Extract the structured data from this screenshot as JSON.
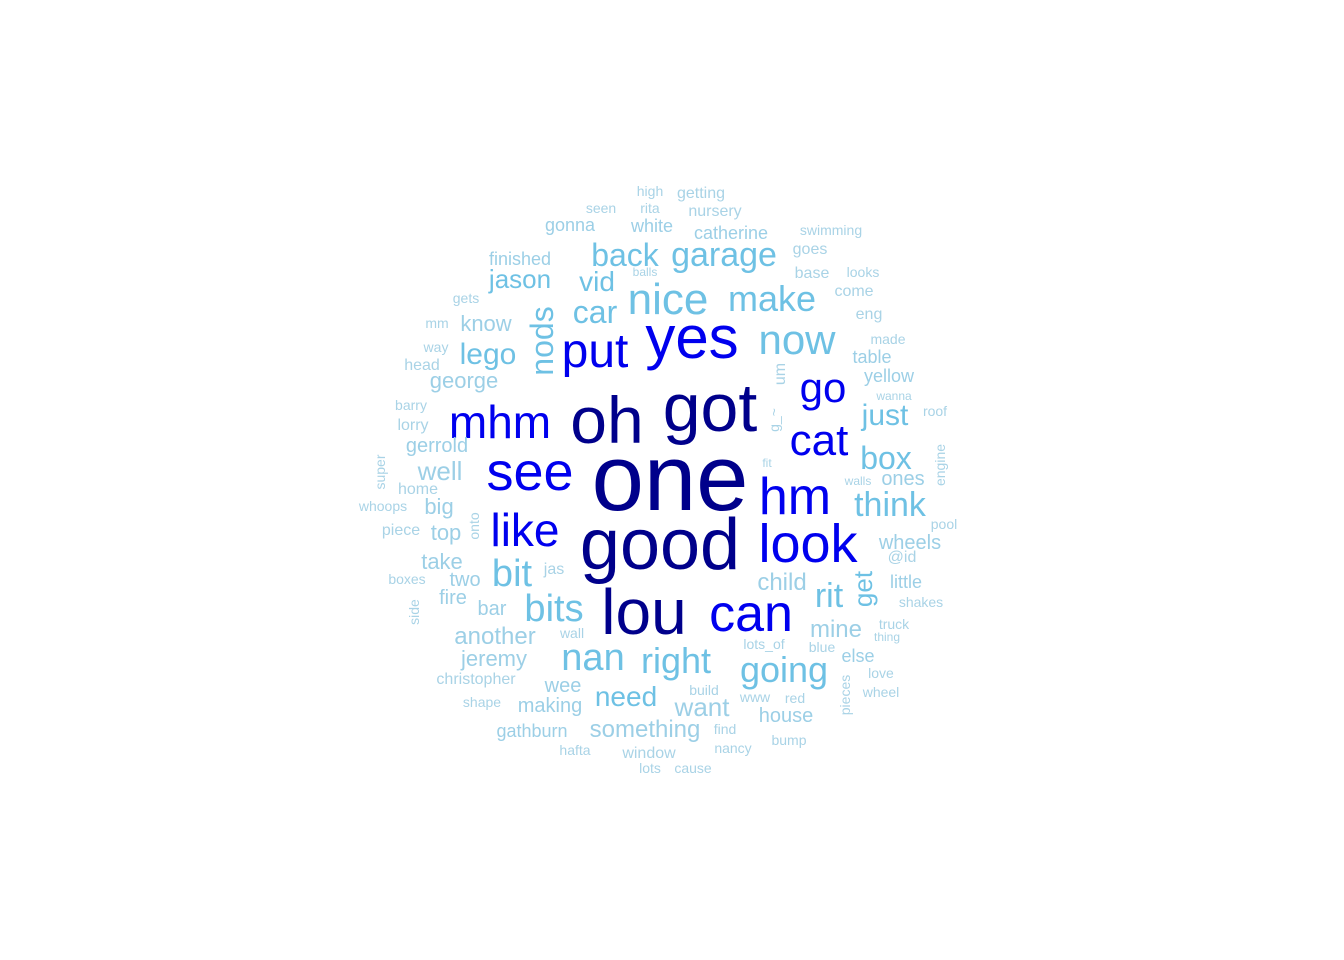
{
  "colors": {
    "tier1": "#00008B",
    "tier2": "#0000EE",
    "tier3": "#6EC1E4",
    "tier4": "#9CCFE6",
    "tier5": "#A9D3E6"
  },
  "words": [
    {
      "text": "one",
      "tier": 1,
      "vertical": false
    },
    {
      "text": "good",
      "tier": 1,
      "vertical": false
    },
    {
      "text": "got",
      "tier": 1,
      "vertical": false
    },
    {
      "text": "oh",
      "tier": 1,
      "vertical": false
    },
    {
      "text": "lou",
      "tier": 1,
      "vertical": false
    },
    {
      "text": "yes",
      "tier": 2,
      "vertical": false
    },
    {
      "text": "see",
      "tier": 2,
      "vertical": false
    },
    {
      "text": "look",
      "tier": 2,
      "vertical": false
    },
    {
      "text": "can",
      "tier": 2,
      "vertical": false
    },
    {
      "text": "mhm",
      "tier": 2,
      "vertical": false
    },
    {
      "text": "put",
      "tier": 2,
      "vertical": false
    },
    {
      "text": "hm",
      "tier": 2,
      "vertical": false
    },
    {
      "text": "like",
      "tier": 2,
      "vertical": false
    },
    {
      "text": "cat",
      "tier": 2,
      "vertical": false
    },
    {
      "text": "go",
      "tier": 2,
      "vertical": false
    },
    {
      "text": "nice",
      "tier": 3,
      "vertical": false
    },
    {
      "text": "now",
      "tier": 3,
      "vertical": false
    },
    {
      "text": "make",
      "tier": 3,
      "vertical": false
    },
    {
      "text": "garage",
      "tier": 3,
      "vertical": false
    },
    {
      "text": "back",
      "tier": 3,
      "vertical": false
    },
    {
      "text": "bits",
      "tier": 3,
      "vertical": false
    },
    {
      "text": "bit",
      "tier": 3,
      "vertical": false
    },
    {
      "text": "nan",
      "tier": 3,
      "vertical": false
    },
    {
      "text": "right",
      "tier": 3,
      "vertical": false
    },
    {
      "text": "going",
      "tier": 3,
      "vertical": false
    },
    {
      "text": "rit",
      "tier": 3,
      "vertical": false
    },
    {
      "text": "think",
      "tier": 3,
      "vertical": false
    },
    {
      "text": "box",
      "tier": 3,
      "vertical": false
    },
    {
      "text": "nods",
      "tier": 3,
      "vertical": true
    },
    {
      "text": "lego",
      "tier": 3,
      "vertical": false
    },
    {
      "text": "car",
      "tier": 3,
      "vertical": false
    },
    {
      "text": "vid",
      "tier": 3,
      "vertical": false
    },
    {
      "text": "jason",
      "tier": 3,
      "vertical": false
    },
    {
      "text": "just",
      "tier": 3,
      "vertical": false
    },
    {
      "text": "get",
      "tier": 3,
      "vertical": true
    },
    {
      "text": "need",
      "tier": 3,
      "vertical": false
    },
    {
      "text": "want",
      "tier": 4,
      "vertical": false
    },
    {
      "text": "something",
      "tier": 4,
      "vertical": false
    },
    {
      "text": "mine",
      "tier": 4,
      "vertical": false
    },
    {
      "text": "child",
      "tier": 4,
      "vertical": false
    },
    {
      "text": "another",
      "tier": 4,
      "vertical": false
    },
    {
      "text": "jeremy",
      "tier": 4,
      "vertical": false
    },
    {
      "text": "well",
      "tier": 4,
      "vertical": false
    },
    {
      "text": "george",
      "tier": 4,
      "vertical": false
    },
    {
      "text": "know",
      "tier": 4,
      "vertical": false
    },
    {
      "text": "big",
      "tier": 4,
      "vertical": false
    },
    {
      "text": "top",
      "tier": 4,
      "vertical": false
    },
    {
      "text": "take",
      "tier": 4,
      "vertical": false
    },
    {
      "text": "two",
      "tier": 4,
      "vertical": false
    },
    {
      "text": "fire",
      "tier": 4,
      "vertical": false
    },
    {
      "text": "bar",
      "tier": 4,
      "vertical": false
    },
    {
      "text": "wee",
      "tier": 4,
      "vertical": false
    },
    {
      "text": "making",
      "tier": 4,
      "vertical": false
    },
    {
      "text": "house",
      "tier": 4,
      "vertical": false
    },
    {
      "text": "gathburn",
      "tier": 4,
      "vertical": false
    },
    {
      "text": "wheels",
      "tier": 4,
      "vertical": false
    },
    {
      "text": "little",
      "tier": 4,
      "vertical": false
    },
    {
      "text": "ones",
      "tier": 4,
      "vertical": false
    },
    {
      "text": "gerrold",
      "tier": 4,
      "vertical": false
    },
    {
      "text": "white",
      "tier": 4,
      "vertical": false
    },
    {
      "text": "catherine",
      "tier": 4,
      "vertical": false
    },
    {
      "text": "gonna",
      "tier": 4,
      "vertical": false
    },
    {
      "text": "finished",
      "tier": 4,
      "vertical": false
    },
    {
      "text": "yellow",
      "tier": 4,
      "vertical": false
    },
    {
      "text": "table",
      "tier": 4,
      "vertical": false
    },
    {
      "text": "else",
      "tier": 4,
      "vertical": false
    },
    {
      "text": "nursery",
      "tier": 5,
      "vertical": false
    },
    {
      "text": "getting",
      "tier": 5,
      "vertical": false
    },
    {
      "text": "high",
      "tier": 5,
      "vertical": false
    },
    {
      "text": "seen",
      "tier": 5,
      "vertical": false
    },
    {
      "text": "rita",
      "tier": 5,
      "vertical": false
    },
    {
      "text": "swimming",
      "tier": 5,
      "vertical": false
    },
    {
      "text": "goes",
      "tier": 5,
      "vertical": false
    },
    {
      "text": "base",
      "tier": 5,
      "vertical": false
    },
    {
      "text": "looks",
      "tier": 5,
      "vertical": false
    },
    {
      "text": "come",
      "tier": 5,
      "vertical": false
    },
    {
      "text": "eng",
      "tier": 5,
      "vertical": false
    },
    {
      "text": "made",
      "tier": 5,
      "vertical": false
    },
    {
      "text": "wanna",
      "tier": 5,
      "vertical": false
    },
    {
      "text": "roof",
      "tier": 5,
      "vertical": false
    },
    {
      "text": "um",
      "tier": 5,
      "vertical": true
    },
    {
      "text": "g_~",
      "tier": 5,
      "vertical": true
    },
    {
      "text": "engine",
      "tier": 5,
      "vertical": true
    },
    {
      "text": "fit",
      "tier": 5,
      "vertical": false
    },
    {
      "text": "walls",
      "tier": 5,
      "vertical": false
    },
    {
      "text": "pool",
      "tier": 5,
      "vertical": false
    },
    {
      "text": "@id",
      "tier": 5,
      "vertical": false
    },
    {
      "text": "shakes",
      "tier": 5,
      "vertical": false
    },
    {
      "text": "truck",
      "tier": 5,
      "vertical": false
    },
    {
      "text": "thing",
      "tier": 5,
      "vertical": false
    },
    {
      "text": "love",
      "tier": 5,
      "vertical": false
    },
    {
      "text": "wheel",
      "tier": 5,
      "vertical": false
    },
    {
      "text": "pieces",
      "tier": 5,
      "vertical": true
    },
    {
      "text": "blue",
      "tier": 5,
      "vertical": false
    },
    {
      "text": "red",
      "tier": 5,
      "vertical": false
    },
    {
      "text": "bump",
      "tier": 5,
      "vertical": false
    },
    {
      "text": "lots_of",
      "tier": 5,
      "vertical": false
    },
    {
      "text": "build",
      "tier": 5,
      "vertical": false
    },
    {
      "text": "www",
      "tier": 5,
      "vertical": false
    },
    {
      "text": "find",
      "tier": 5,
      "vertical": false
    },
    {
      "text": "nancy",
      "tier": 5,
      "vertical": false
    },
    {
      "text": "window",
      "tier": 5,
      "vertical": false
    },
    {
      "text": "lots",
      "tier": 5,
      "vertical": false
    },
    {
      "text": "cause",
      "tier": 5,
      "vertical": false
    },
    {
      "text": "hafta",
      "tier": 5,
      "vertical": false
    },
    {
      "text": "wall",
      "tier": 5,
      "vertical": false
    },
    {
      "text": "jas",
      "tier": 5,
      "vertical": false
    },
    {
      "text": "onto",
      "tier": 5,
      "vertical": true
    },
    {
      "text": "christopher",
      "tier": 5,
      "vertical": false
    },
    {
      "text": "shape",
      "tier": 5,
      "vertical": false
    },
    {
      "text": "side",
      "tier": 5,
      "vertical": true
    },
    {
      "text": "boxes",
      "tier": 5,
      "vertical": false
    },
    {
      "text": "piece",
      "tier": 5,
      "vertical": false
    },
    {
      "text": "whoops",
      "tier": 5,
      "vertical": false
    },
    {
      "text": "super",
      "tier": 5,
      "vertical": true
    },
    {
      "text": "home",
      "tier": 5,
      "vertical": false
    },
    {
      "text": "lorry",
      "tier": 5,
      "vertical": false
    },
    {
      "text": "barry",
      "tier": 5,
      "vertical": false
    },
    {
      "text": "head",
      "tier": 5,
      "vertical": false
    },
    {
      "text": "way",
      "tier": 5,
      "vertical": false
    },
    {
      "text": "mm",
      "tier": 5,
      "vertical": false
    },
    {
      "text": "gets",
      "tier": 5,
      "vertical": false
    },
    {
      "text": "balls",
      "tier": 5,
      "vertical": false
    }
  ]
}
